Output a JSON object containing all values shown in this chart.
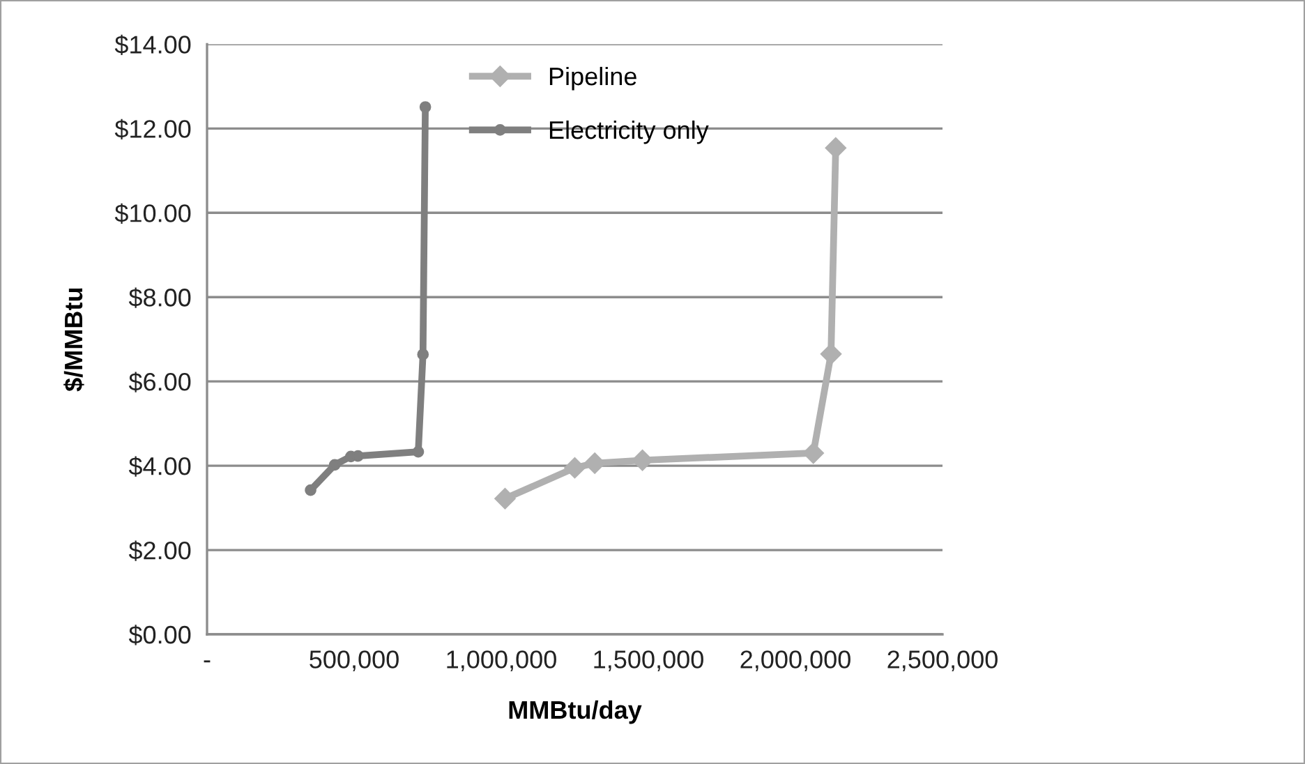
{
  "chart_data": {
    "type": "line",
    "xlabel": "MMBtu/day",
    "ylabel": "$/MMBtu",
    "series": [
      {
        "name": "Pipeline",
        "color": "#b0b0b0",
        "marker": "diamond",
        "x": [
          1013000,
          1250000,
          1318000,
          1480000,
          2061000,
          2121000,
          2137000
        ],
        "values": [
          3.22,
          3.95,
          4.06,
          4.13,
          4.3,
          6.65,
          11.54
        ]
      },
      {
        "name": "Electricity only",
        "color": "#7f7f7f",
        "marker": "circle",
        "x": [
          352000,
          434000,
          489000,
          513000,
          718000,
          734000,
          742000
        ],
        "values": [
          3.42,
          4.02,
          4.22,
          4.23,
          4.33,
          6.64,
          12.51
        ]
      }
    ],
    "xlim": [
      0,
      2500000
    ],
    "xticks": [
      {
        "value": 0,
        "label": "-"
      },
      {
        "value": 500000,
        "label": "500,000"
      },
      {
        "value": 1000000,
        "label": "1,000,000"
      },
      {
        "value": 1500000,
        "label": "1,500,000"
      },
      {
        "value": 2000000,
        "label": "2,000,000"
      },
      {
        "value": 2500000,
        "label": "2,500,000"
      }
    ],
    "ylim": [
      0,
      14
    ],
    "yticks": [
      {
        "value": 0,
        "label": "$0.00"
      },
      {
        "value": 2,
        "label": "$2.00"
      },
      {
        "value": 4,
        "label": "$4.00"
      },
      {
        "value": 6,
        "label": "$6.00"
      },
      {
        "value": 8,
        "label": "$8.00"
      },
      {
        "value": 10,
        "label": "$10.00"
      },
      {
        "value": 12,
        "label": "$12.00"
      },
      {
        "value": 14,
        "label": "$14.00"
      }
    ],
    "grid": "y",
    "legend": "top left",
    "line_style": "solid"
  }
}
